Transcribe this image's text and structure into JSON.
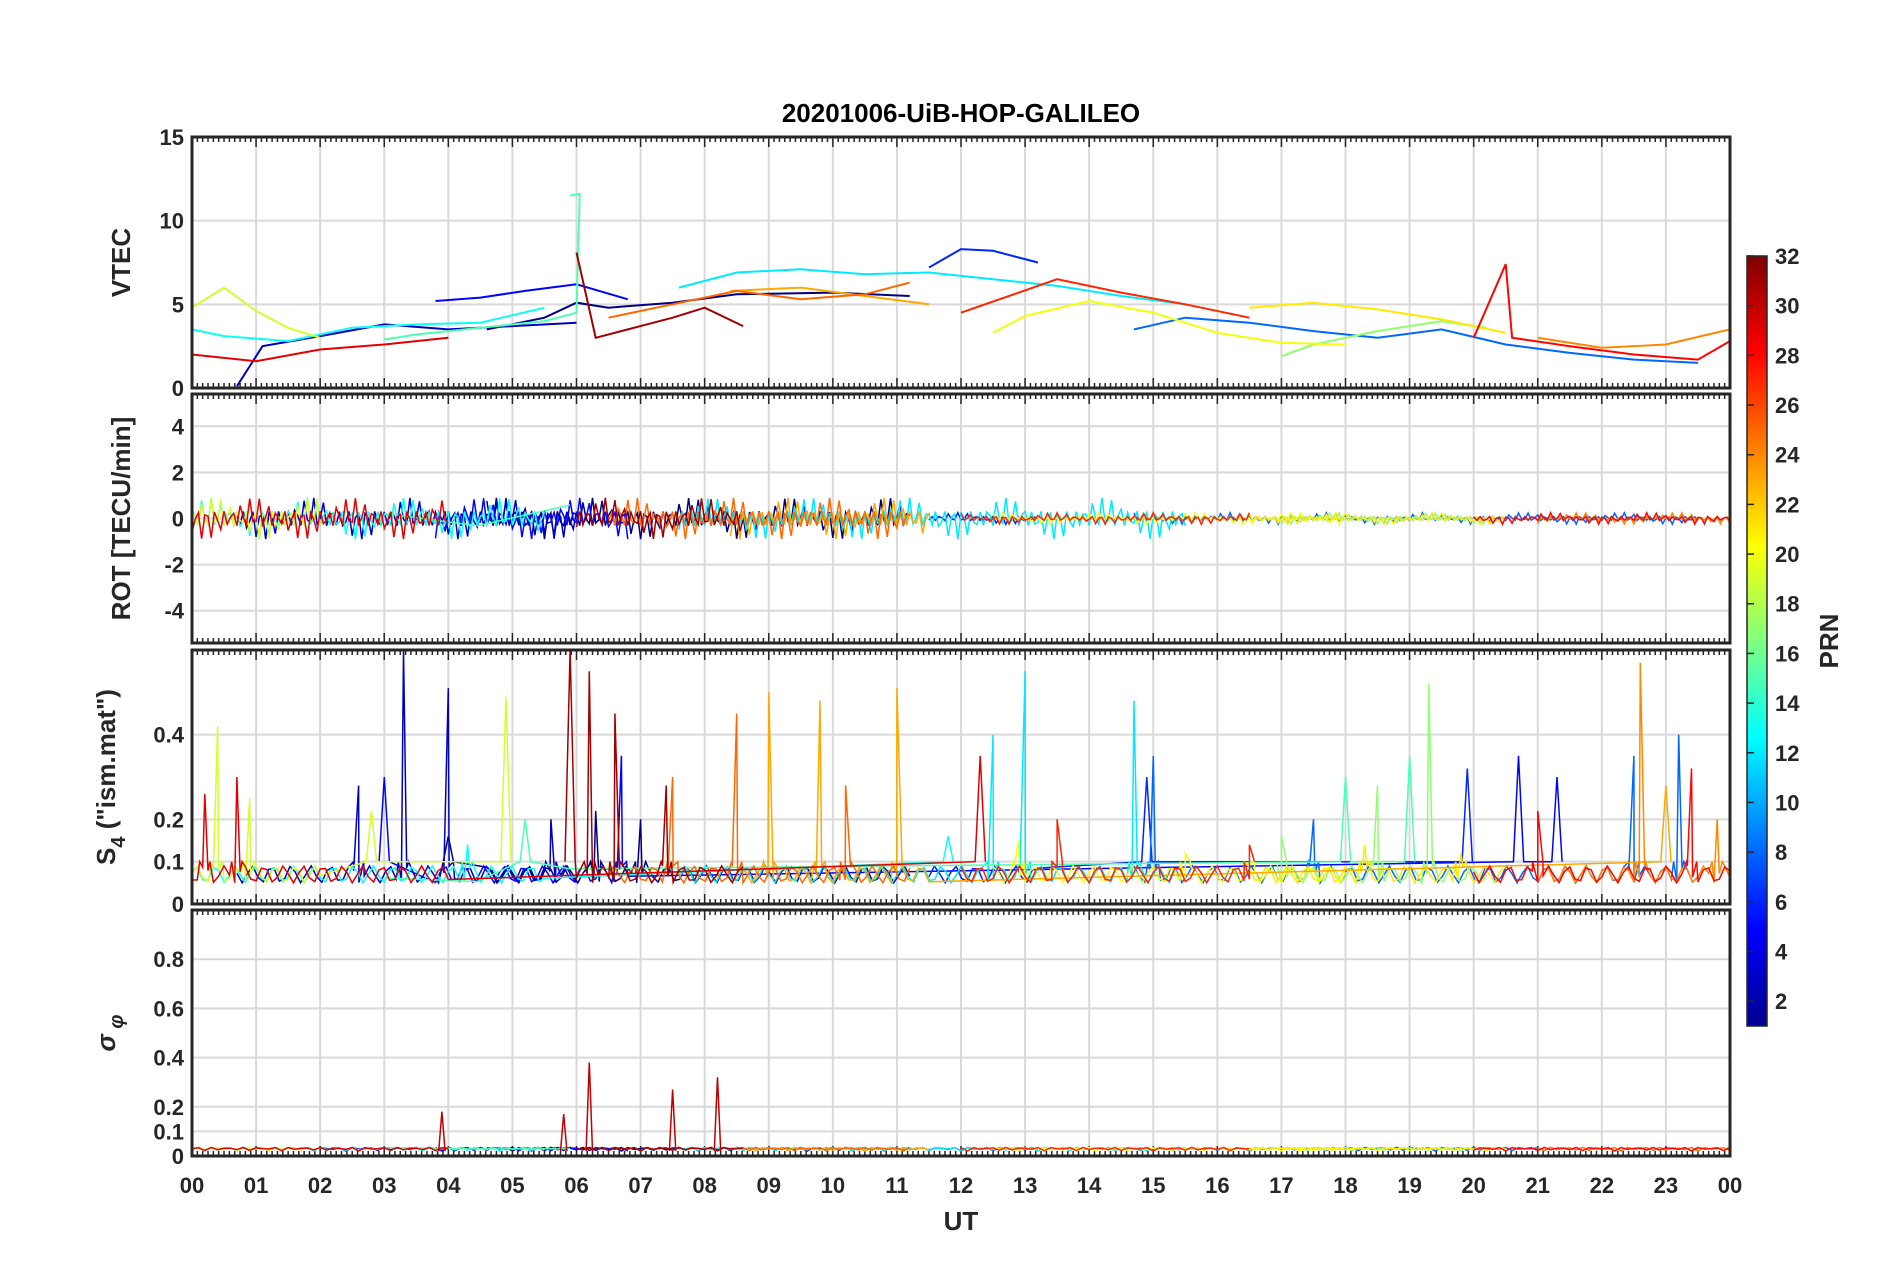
{
  "chart_data": {
    "type": "line",
    "title": "20201006-UiB-HOP-GALILEO",
    "xlabel": "UT",
    "x_tick_labels": [
      "00",
      "01",
      "02",
      "03",
      "04",
      "05",
      "06",
      "07",
      "08",
      "09",
      "10",
      "11",
      "12",
      "13",
      "14",
      "15",
      "16",
      "17",
      "18",
      "19",
      "20",
      "21",
      "22",
      "23",
      "00"
    ],
    "xlim": [
      0,
      24
    ],
    "panels": [
      {
        "id": "vtec",
        "ylabel": "VTEC",
        "ylim": [
          0,
          15
        ],
        "yticks": [
          0,
          5,
          10,
          15
        ],
        "ytick_labels": [
          "0",
          "5",
          "10",
          "15"
        ]
      },
      {
        "id": "rot",
        "ylabel": "ROT [TECU/min]",
        "ylim": [
          -5.4,
          5.4
        ],
        "yticks": [
          -4,
          -2,
          0,
          2,
          4
        ],
        "ytick_labels": [
          "-4",
          "-2",
          "0",
          "2",
          "4"
        ]
      },
      {
        "id": "s4",
        "ylabel": "S4 (\"ism.mat\")",
        "ylabel_parts": [
          "S",
          "4",
          " (\"ism.mat\")"
        ],
        "ylim": [
          0,
          0.6
        ],
        "yticks": [
          0,
          0.1,
          0.2,
          0.4
        ],
        "ytick_labels": [
          "0",
          "0.1",
          "0.2",
          "0.4"
        ]
      },
      {
        "id": "sigma",
        "ylabel": "σφ",
        "ylabel_parts": [
          "σ",
          "φ"
        ],
        "ylim": [
          0,
          1
        ],
        "yticks": [
          0,
          0.1,
          0.2,
          0.4,
          0.6,
          0.8
        ],
        "ytick_labels": [
          "0",
          "0.1",
          "0.2",
          "0.4",
          "0.6",
          "0.8"
        ]
      }
    ],
    "colorbar": {
      "label": "PRN",
      "range": [
        1,
        32
      ],
      "ticks": [
        2,
        4,
        6,
        8,
        10,
        12,
        14,
        16,
        18,
        20,
        22,
        24,
        26,
        28,
        30,
        32
      ],
      "tick_labels": [
        "2",
        "4",
        "6",
        "8",
        "10",
        "12",
        "14",
        "16",
        "18",
        "20",
        "22",
        "24",
        "26",
        "28",
        "30",
        "32"
      ],
      "colormap": "jet"
    },
    "series": [
      {
        "prn": 1,
        "vtec": [
          [
            4.6,
            3.5
          ],
          [
            5.5,
            4.2
          ],
          [
            6.0,
            5.1
          ],
          [
            6.5,
            4.8
          ],
          [
            7.5,
            5.1
          ],
          [
            8.5,
            5.6
          ],
          [
            10.0,
            5.7
          ],
          [
            11.2,
            5.5
          ]
        ],
        "s4_peaks": [
          [
            4.0,
            0.16
          ],
          [
            6.3,
            0.22
          ],
          [
            7.0,
            0.2
          ]
        ]
      },
      {
        "prn": 3,
        "vtec": [
          [
            0.7,
            0.1
          ],
          [
            1.1,
            2.5
          ],
          [
            2.0,
            3.1
          ],
          [
            3.0,
            3.8
          ],
          [
            4.0,
            3.5
          ],
          [
            5.0,
            3.7
          ],
          [
            6.0,
            3.9
          ]
        ],
        "s4_peaks": [
          [
            2.6,
            0.28
          ],
          [
            3.3,
            0.6
          ],
          [
            4.0,
            0.51
          ],
          [
            5.6,
            0.2
          ]
        ]
      },
      {
        "prn": 5,
        "vtec": [
          [
            3.8,
            5.2
          ],
          [
            4.5,
            5.4
          ],
          [
            5.2,
            5.8
          ],
          [
            6.0,
            6.2
          ],
          [
            6.8,
            5.3
          ]
        ],
        "s4_peaks": [
          [
            3.0,
            0.3
          ],
          [
            6.7,
            0.35
          ],
          [
            20.7,
            0.35
          ],
          [
            21.3,
            0.3
          ]
        ]
      },
      {
        "prn": 6,
        "vtec": [
          [
            11.5,
            7.2
          ],
          [
            12.0,
            8.3
          ],
          [
            12.5,
            8.2
          ],
          [
            13.2,
            7.5
          ]
        ],
        "s4_peaks": [
          [
            14.9,
            0.3
          ],
          [
            19.9,
            0.32
          ]
        ]
      },
      {
        "prn": 8,
        "vtec": [
          [
            14.7,
            3.5
          ],
          [
            15.5,
            4.2
          ],
          [
            16.5,
            3.9
          ],
          [
            17.5,
            3.4
          ],
          [
            18.5,
            3.0
          ],
          [
            19.5,
            3.5
          ],
          [
            20.5,
            2.6
          ],
          [
            21.5,
            2.1
          ],
          [
            22.5,
            1.7
          ],
          [
            23.5,
            1.5
          ]
        ],
        "s4_peaks": [
          [
            15.0,
            0.35
          ],
          [
            17.5,
            0.2
          ],
          [
            22.5,
            0.35
          ],
          [
            23.2,
            0.4
          ]
        ]
      },
      {
        "prn": 12,
        "vtec": [
          [
            7.6,
            6.0
          ],
          [
            8.5,
            6.9
          ],
          [
            9.5,
            7.1
          ],
          [
            10.5,
            6.8
          ],
          [
            11.5,
            6.9
          ],
          [
            12.5,
            6.5
          ],
          [
            13.5,
            6.1
          ],
          [
            14.5,
            5.5
          ],
          [
            15.5,
            5.0
          ]
        ],
        "s4_peaks": [
          [
            12.5,
            0.4
          ],
          [
            13.0,
            0.55
          ],
          [
            14.7,
            0.48
          ]
        ]
      },
      {
        "prn": 13,
        "vtec": [
          [
            0.0,
            3.5
          ],
          [
            0.5,
            3.1
          ],
          [
            1.5,
            2.8
          ],
          [
            2.5,
            3.6
          ],
          [
            3.5,
            3.8
          ],
          [
            4.5,
            3.9
          ],
          [
            5.5,
            4.8
          ]
        ],
        "s4_peaks": [
          [
            4.3,
            0.14
          ],
          [
            11.8,
            0.16
          ]
        ]
      },
      {
        "prn": 15,
        "vtec": [
          [
            5.9,
            11.5
          ],
          [
            6.05,
            11.6
          ],
          [
            6.0,
            4.5
          ],
          [
            5.5,
            4.0
          ],
          [
            4.5,
            3.6
          ],
          [
            3.5,
            3.2
          ],
          [
            3.0,
            2.9
          ]
        ],
        "s4_peaks": [
          [
            5.2,
            0.2
          ],
          [
            18.0,
            0.3
          ],
          [
            19.0,
            0.35
          ]
        ]
      },
      {
        "prn": 17,
        "vtec": [
          [
            17.0,
            1.9
          ],
          [
            17.5,
            2.6
          ],
          [
            18.5,
            3.4
          ],
          [
            19.5,
            4.0
          ],
          [
            20.2,
            3.6
          ]
        ],
        "s4_peaks": [
          [
            17.0,
            0.16
          ],
          [
            18.5,
            0.28
          ],
          [
            19.3,
            0.52
          ]
        ]
      },
      {
        "prn": 19,
        "vtec": [
          [
            0.0,
            4.8
          ],
          [
            0.5,
            6.0
          ],
          [
            1.0,
            4.6
          ],
          [
            1.5,
            3.6
          ],
          [
            2.0,
            3.0
          ]
        ],
        "s4_peaks": [
          [
            0.4,
            0.42
          ],
          [
            0.9,
            0.25
          ],
          [
            2.8,
            0.22
          ],
          [
            4.9,
            0.49
          ]
        ]
      },
      {
        "prn": 20,
        "vtec": [
          [
            12.5,
            3.3
          ],
          [
            13.0,
            4.3
          ],
          [
            14.0,
            5.2
          ],
          [
            15.0,
            4.5
          ],
          [
            16.0,
            3.3
          ],
          [
            17.0,
            2.7
          ],
          [
            18.0,
            2.6
          ]
        ],
        "s4_peaks": [
          [
            12.9,
            0.15
          ],
          [
            15.5,
            0.12
          ],
          [
            16.5,
            0.1
          ]
        ]
      },
      {
        "prn": 21,
        "vtec": [
          [
            16.5,
            4.8
          ],
          [
            17.5,
            5.1
          ],
          [
            18.5,
            4.7
          ],
          [
            19.5,
            4.1
          ],
          [
            20.5,
            3.3
          ]
        ],
        "s4_peaks": [
          [
            18.3,
            0.14
          ],
          [
            19.8,
            0.12
          ]
        ]
      },
      {
        "prn": 23,
        "vtec": [
          [
            8.4,
            5.8
          ],
          [
            9.5,
            6.0
          ],
          [
            10.5,
            5.5
          ],
          [
            11.5,
            5.0
          ]
        ],
        "s4_peaks": [
          [
            9.0,
            0.5
          ],
          [
            9.8,
            0.48
          ],
          [
            11.0,
            0.51
          ],
          [
            23.0,
            0.28
          ]
        ]
      },
      {
        "prn": 24,
        "vtec": [
          [
            21.0,
            3.0
          ],
          [
            22.0,
            2.4
          ],
          [
            23.0,
            2.6
          ],
          [
            24.0,
            3.5
          ]
        ],
        "s4_peaks": [
          [
            22.6,
            0.57
          ],
          [
            23.8,
            0.2
          ]
        ]
      },
      {
        "prn": 25,
        "vtec": [
          [
            6.5,
            4.2
          ],
          [
            7.5,
            5.0
          ],
          [
            8.5,
            5.8
          ],
          [
            9.5,
            5.3
          ],
          [
            10.5,
            5.6
          ],
          [
            11.2,
            6.3
          ]
        ],
        "s4_peaks": [
          [
            7.5,
            0.3
          ],
          [
            8.5,
            0.45
          ],
          [
            10.2,
            0.28
          ]
        ]
      },
      {
        "prn": 27,
        "vtec": [
          [
            12.0,
            4.5
          ],
          [
            13.5,
            6.5
          ],
          [
            14.5,
            5.7
          ],
          [
            15.5,
            5.0
          ],
          [
            16.5,
            4.2
          ]
        ],
        "s4_peaks": [
          [
            13.5,
            0.2
          ],
          [
            16.5,
            0.14
          ]
        ]
      },
      {
        "prn": 28,
        "vtec": [
          [
            20.0,
            3.0
          ],
          [
            20.5,
            7.4
          ],
          [
            20.6,
            3.0
          ],
          [
            21.5,
            2.5
          ],
          [
            22.5,
            2.0
          ],
          [
            23.5,
            1.7
          ],
          [
            24.0,
            2.8
          ]
        ],
        "s4_peaks": [
          [
            21.0,
            0.22
          ],
          [
            23.4,
            0.32
          ]
        ]
      },
      {
        "prn": 29,
        "vtec": [
          [
            0.0,
            2.0
          ],
          [
            1.0,
            1.6
          ],
          [
            2.0,
            2.3
          ],
          [
            3.0,
            2.6
          ],
          [
            4.0,
            3.0
          ]
        ],
        "s4_peaks": [
          [
            0.2,
            0.26
          ],
          [
            0.7,
            0.3
          ],
          [
            12.3,
            0.35
          ]
        ]
      },
      {
        "prn": 31,
        "vtec": [
          [
            6.0,
            8.1
          ],
          [
            6.3,
            3.0
          ],
          [
            6.8,
            3.5
          ],
          [
            7.5,
            4.2
          ],
          [
            8.0,
            4.8
          ],
          [
            8.6,
            3.7
          ]
        ],
        "s4_peaks": [
          [
            5.9,
            0.6
          ],
          [
            6.2,
            0.55
          ],
          [
            6.6,
            0.45
          ],
          [
            7.4,
            0.28
          ]
        ]
      }
    ],
    "sigma_peaks": [
      [
        6.2,
        0.38
      ],
      [
        7.5,
        0.27
      ],
      [
        8.2,
        0.32
      ],
      [
        3.9,
        0.18
      ],
      [
        5.8,
        0.17
      ]
    ]
  }
}
